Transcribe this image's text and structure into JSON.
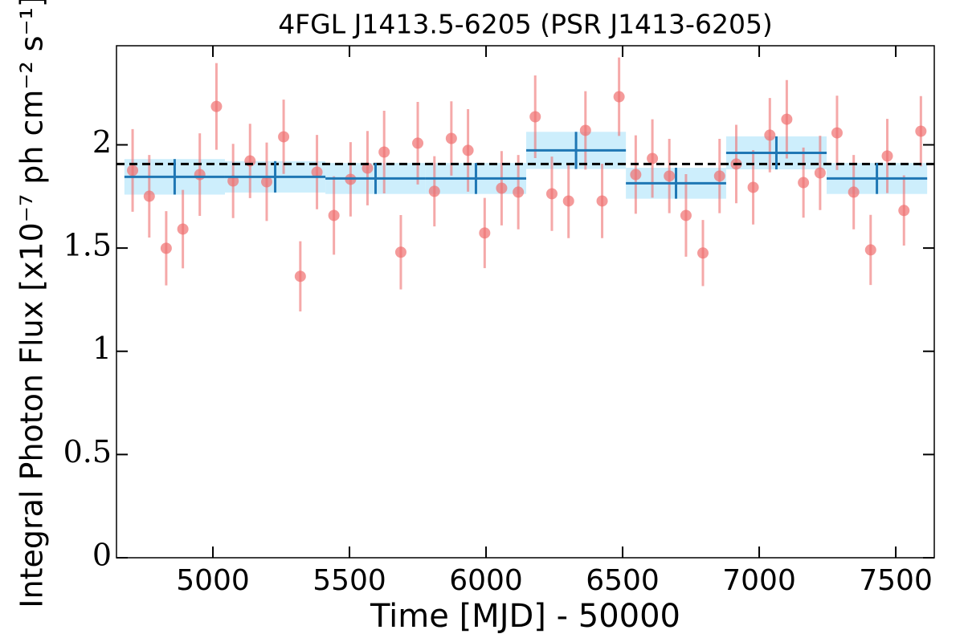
{
  "chart_data": {
    "type": "scatter",
    "title": "4FGL J1413.5-6205 (PSR J1413-6205)",
    "xlabel": "Time [MJD] - 50000",
    "ylabel": "Integral Photon Flux [x10⁻⁷ ph cm⁻² s⁻¹]",
    "xlim": [
      4647,
      7641
    ],
    "ylim": [
      0,
      2.48
    ],
    "xticks": [
      5000,
      5500,
      6000,
      6500,
      7000,
      7500
    ],
    "yticks": [
      0,
      0.5,
      1,
      1.5,
      2
    ],
    "points": {
      "color": "#ef6f6f",
      "x": [
        4706,
        4767,
        4829,
        4890,
        4952,
        5013,
        5074,
        5136,
        5197,
        5259,
        5320,
        5381,
        5443,
        5504,
        5566,
        5627,
        5688,
        5750,
        5811,
        5873,
        5934,
        5995,
        6057,
        6118,
        6180,
        6241,
        6302,
        6364,
        6425,
        6487,
        6548,
        6609,
        6671,
        6732,
        6794,
        6855,
        6916,
        6978,
        7039,
        7101,
        7162,
        7223,
        7285,
        7346,
        7408,
        7469,
        7530,
        7592
      ],
      "values": [
        1.876,
        1.751,
        1.499,
        1.592,
        1.856,
        2.186,
        1.825,
        1.922,
        1.821,
        2.039,
        1.363,
        1.868,
        1.658,
        1.833,
        1.887,
        1.965,
        1.48,
        2.008,
        1.775,
        2.031,
        1.973,
        1.573,
        1.79,
        1.771,
        2.136,
        1.763,
        1.728,
        2.07,
        1.728,
        2.233,
        1.856,
        1.934,
        1.849,
        1.658,
        1.476,
        1.849,
        1.907,
        1.794,
        2.047,
        2.124,
        1.817,
        1.864,
        2.058,
        1.771,
        1.491,
        1.946,
        1.682,
        2.066
      ],
      "errors": [
        0.2,
        0.2,
        0.18,
        0.19,
        0.2,
        0.21,
        0.18,
        0.18,
        0.19,
        0.18,
        0.17,
        0.18,
        0.19,
        0.18,
        0.18,
        0.2,
        0.18,
        0.2,
        0.17,
        0.18,
        0.2,
        0.17,
        0.18,
        0.18,
        0.2,
        0.18,
        0.18,
        0.19,
        0.18,
        0.19,
        0.19,
        0.19,
        0.18,
        0.2,
        0.16,
        0.18,
        0.19,
        0.18,
        0.18,
        0.19,
        0.17,
        0.18,
        0.18,
        0.18,
        0.17,
        0.18,
        0.17,
        0.17
      ]
    },
    "blocks": {
      "color": "#1f77b4",
      "fill": "#cdeefc",
      "bins": [
        4676,
        5044,
        5412,
        5779,
        6147,
        6512,
        6879,
        7247,
        7615
      ],
      "values": [
        1.845,
        1.845,
        1.837,
        1.837,
        1.973,
        1.814,
        1.961,
        1.837
      ],
      "errors": [
        0.086,
        0.076,
        0.075,
        0.075,
        0.09,
        0.075,
        0.08,
        0.075
      ]
    },
    "mean_line": 1.907
  }
}
